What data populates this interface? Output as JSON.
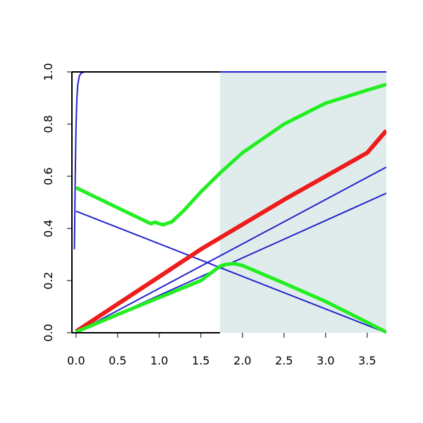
{
  "chart_data": {
    "type": "line",
    "title": "",
    "xlabel": "",
    "ylabel": "",
    "xlim": [
      -0.05,
      3.73
    ],
    "ylim": [
      0,
      1
    ],
    "x_ticks": [
      "0.0",
      "0.5",
      "1.0",
      "1.5",
      "2.0",
      "2.5",
      "3.0",
      "3.5"
    ],
    "y_ticks": [
      "0.0",
      "0.2",
      "0.4",
      "0.6",
      "0.8",
      "1.0"
    ],
    "shaded_region": {
      "x_from": 1.73,
      "x_to": 3.73,
      "color": "#e0ecec"
    },
    "grid": false,
    "legend": "none",
    "series": [
      {
        "color": "#2222cc",
        "width": 2,
        "points": [
          [
            -0.02,
            0.32
          ],
          [
            -0.01,
            0.6
          ],
          [
            0.0,
            0.8
          ],
          [
            0.01,
            0.9
          ],
          [
            0.02,
            0.95
          ],
          [
            0.04,
            0.985
          ],
          [
            0.06,
            0.995
          ],
          [
            0.1,
            1.0
          ],
          [
            3.73,
            1.0
          ]
        ]
      },
      {
        "color": "#2222cc",
        "width": 2,
        "points": [
          [
            0.0,
            0.466
          ],
          [
            3.73,
            0.0
          ]
        ]
      },
      {
        "color": "#2222cc",
        "width": 2,
        "points": [
          [
            0.0,
            0.0
          ],
          [
            3.73,
            0.635
          ]
        ]
      },
      {
        "color": "#2222cc",
        "width": 2,
        "points": [
          [
            0.0,
            0.0
          ],
          [
            3.73,
            0.535
          ]
        ]
      },
      {
        "color": "#ee1c1c",
        "width": 6,
        "points": [
          [
            0.0,
            0.005
          ],
          [
            0.5,
            0.11
          ],
          [
            1.0,
            0.215
          ],
          [
            1.5,
            0.32
          ],
          [
            2.0,
            0.415
          ],
          [
            2.5,
            0.51
          ],
          [
            3.0,
            0.6
          ],
          [
            3.5,
            0.69
          ],
          [
            3.73,
            0.775
          ]
        ]
      },
      {
        "color": "#22ee22",
        "width": 5,
        "points": [
          [
            0.0,
            0.556
          ],
          [
            0.9,
            0.418
          ],
          [
            0.95,
            0.424
          ],
          [
            1.0,
            0.418
          ],
          [
            1.05,
            0.414
          ],
          [
            1.1,
            0.42
          ],
          [
            1.15,
            0.425
          ],
          [
            1.2,
            0.44
          ],
          [
            1.3,
            0.47
          ],
          [
            1.5,
            0.54
          ],
          [
            1.73,
            0.612
          ],
          [
            2.0,
            0.69
          ],
          [
            2.5,
            0.8
          ],
          [
            3.0,
            0.88
          ],
          [
            3.5,
            0.93
          ],
          [
            3.73,
            0.952
          ]
        ]
      },
      {
        "color": "#22ee22",
        "width": 5,
        "points": [
          [
            0.0,
            0.003
          ],
          [
            0.5,
            0.07
          ],
          [
            1.0,
            0.135
          ],
          [
            1.5,
            0.2
          ],
          [
            1.73,
            0.255
          ],
          [
            1.8,
            0.262
          ],
          [
            1.9,
            0.265
          ],
          [
            2.0,
            0.258
          ],
          [
            2.5,
            0.19
          ],
          [
            3.0,
            0.12
          ],
          [
            3.5,
            0.04
          ],
          [
            3.73,
            0.002
          ]
        ]
      }
    ]
  }
}
